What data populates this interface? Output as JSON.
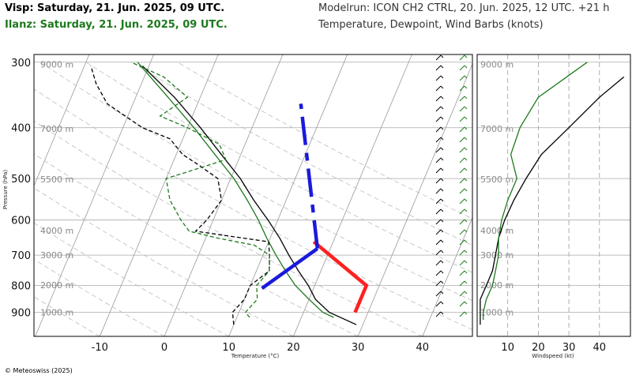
{
  "header": {
    "title_visp": "Visp: Saturday, 21. Jun. 2025, 09 UTC.",
    "title_ilanz": "Ilanz: Saturday, 21. Jun. 2025, 09 UTC.",
    "modelrun": "Modelrun: ICON CH2 CTRL, 20. Jun. 2025, 12 UTC. +21 h",
    "variables": "Temperature, Dewpoint, Wind Barbs (knots)"
  },
  "footer": {
    "copyright": "© Meteoswiss (2025)"
  },
  "colors": {
    "visp": "#000000",
    "ilanz": "#1d7a1d",
    "parcel": "#ff2020",
    "lapse": "#1a1adc"
  },
  "chart_data": [
    {
      "type": "line",
      "subtype": "skew-T log-p sounding",
      "xlabel": "Temperature (°C)",
      "ylabel": "Pressure (hPa)",
      "x_ticks": [
        -10,
        0,
        10,
        20,
        30,
        40
      ],
      "y_ticks": [
        300,
        400,
        500,
        600,
        700,
        800,
        900
      ],
      "altitude_labels": [
        "9000 m",
        "7000 m",
        "5500 m",
        "4000 m",
        "3000 m",
        "2000 m",
        "1000 m"
      ],
      "altitude_pressure": [
        303,
        402,
        502,
        628,
        700,
        798,
        900
      ],
      "xlim": [
        -25,
        48
      ],
      "ylim": [
        290,
        1000
      ],
      "series": [
        {
          "name": "Visp temperature",
          "color": "#000000",
          "dash": "solid",
          "points": [
            [
              29,
              950
            ],
            [
              24,
              900
            ],
            [
              21,
              850
            ],
            [
              19,
              800
            ],
            [
              16.5,
              750
            ],
            [
              14,
              700
            ],
            [
              11.5,
              650
            ],
            [
              8.5,
              600
            ],
            [
              5,
              550
            ],
            [
              1.5,
              500
            ],
            [
              -3,
              450
            ],
            [
              -8,
              400
            ],
            [
              -14,
              350
            ],
            [
              -21,
              305
            ]
          ]
        },
        {
          "name": "Ilanz temperature",
          "color": "#1d7a1d",
          "dash": "solid",
          "points": [
            [
              25,
              920
            ],
            [
              23,
              900
            ],
            [
              20,
              850
            ],
            [
              17,
              800
            ],
            [
              14.5,
              750
            ],
            [
              12,
              700
            ],
            [
              9.5,
              650
            ],
            [
              7,
              600
            ],
            [
              4,
              550
            ],
            [
              0.5,
              500
            ],
            [
              -4,
              450
            ],
            [
              -9,
              400
            ],
            [
              -15,
              350
            ],
            [
              -22,
              300
            ]
          ]
        },
        {
          "name": "Visp dewpoint",
          "color": "#000000",
          "dash": "dashed",
          "points": [
            [
              10,
              950
            ],
            [
              9,
              900
            ],
            [
              10,
              850
            ],
            [
              10,
              800
            ],
            [
              12,
              750
            ],
            [
              11,
              700
            ],
            [
              10,
              660
            ],
            [
              2,
              640
            ],
            [
              -2,
              630
            ],
            [
              -1,
              600
            ],
            [
              0,
              550
            ],
            [
              -2,
              500
            ],
            [
              -6,
              470
            ],
            [
              -9,
              450
            ],
            [
              -12,
              420
            ],
            [
              -17,
              400
            ],
            [
              -24,
              360
            ],
            [
              -27,
              330
            ],
            [
              -29,
              305
            ]
          ]
        },
        {
          "name": "Ilanz dewpoint",
          "color": "#1d7a1d",
          "dash": "dashed",
          "points": [
            [
              12,
              920
            ],
            [
              11,
              900
            ],
            [
              12,
              850
            ],
            [
              11,
              800
            ],
            [
              12,
              750
            ],
            [
              11,
              700
            ],
            [
              8,
              670
            ],
            [
              2,
              650
            ],
            [
              -3,
              630
            ],
            [
              -5,
              600
            ],
            [
              -8,
              550
            ],
            [
              -10,
              500
            ],
            [
              -6,
              480
            ],
            [
              -2,
              460
            ],
            [
              -4,
              430
            ],
            [
              -10,
              400
            ],
            [
              -15,
              380
            ],
            [
              -12,
              350
            ],
            [
              -17,
              320
            ],
            [
              -23,
              300
            ]
          ]
        },
        {
          "name": "Parcel path",
          "color": "#ff2020",
          "dash": "solid",
          "points": [
            [
              28,
              900
            ],
            [
              28,
              800
            ],
            [
              17,
              660
            ]
          ]
        },
        {
          "name": "Lapse rate",
          "color": "#1a1adc",
          "dash": "solid",
          "points": [
            [
              12,
              810
            ],
            [
              18,
              680
            ]
          ]
        },
        {
          "name": "Lapse rate upper",
          "color": "#1a1adc",
          "dash": "dash-dot",
          "points": [
            [
              18,
              680
            ],
            [
              6,
              360
            ]
          ]
        }
      ]
    },
    {
      "type": "line",
      "xlabel": "Windspeed (kt)",
      "x_ticks": [
        10,
        20,
        30,
        40
      ],
      "xlim": [
        0,
        50
      ],
      "ylim": [
        290,
        1000
      ],
      "series": [
        {
          "name": "Visp windspeed",
          "color": "#000000",
          "dash": "solid",
          "points": [
            [
              1,
              950
            ],
            [
              1,
              900
            ],
            [
              1,
              850
            ],
            [
              3,
              800
            ],
            [
              5,
              750
            ],
            [
              6,
              700
            ],
            [
              7,
              650
            ],
            [
              9,
              600
            ],
            [
              12,
              550
            ],
            [
              16,
              500
            ],
            [
              21,
              450
            ],
            [
              30,
              400
            ],
            [
              40,
              350
            ],
            [
              48,
              320
            ]
          ]
        },
        {
          "name": "Ilanz windspeed",
          "color": "#1d7a1d",
          "dash": "solid",
          "points": [
            [
              2,
              930
            ],
            [
              2,
              900
            ],
            [
              3,
              850
            ],
            [
              5,
              800
            ],
            [
              6,
              750
            ],
            [
              7,
              700
            ],
            [
              7,
              650
            ],
            [
              8,
              600
            ],
            [
              10,
              550
            ],
            [
              13,
              500
            ],
            [
              11,
              450
            ],
            [
              14,
              400
            ],
            [
              20,
              350
            ],
            [
              36,
              300
            ]
          ]
        }
      ]
    }
  ]
}
